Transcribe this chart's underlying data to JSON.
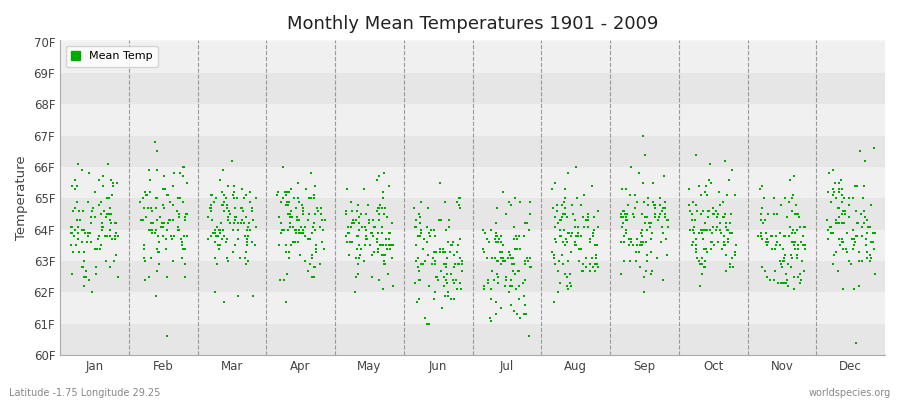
{
  "title": "Monthly Mean Temperatures 1901 - 2009",
  "ylabel": "Temperature",
  "ylim_low": 60,
  "ylim_high": 70,
  "ytick_labels": [
    "60F",
    "61F",
    "62F",
    "63F",
    "64F",
    "65F",
    "66F",
    "67F",
    "68F",
    "69F",
    "70F"
  ],
  "months": [
    "Jan",
    "Feb",
    "Mar",
    "Apr",
    "May",
    "Jun",
    "Jul",
    "Aug",
    "Sep",
    "Oct",
    "Nov",
    "Dec"
  ],
  "legend_label": "Mean Temp",
  "dot_color": "#00aa00",
  "bg_color": "#ffffff",
  "plot_bg": "#f5f5f5",
  "band_light": "#f0f0f0",
  "band_dark": "#e6e6e6",
  "footer_left": "Latitude -1.75 Longitude 29.25",
  "footer_right": "worldspecies.org",
  "monthly_means": [
    64.1,
    64.3,
    64.3,
    64.1,
    63.9,
    63.2,
    62.9,
    63.7,
    64.2,
    64.1,
    63.7,
    64.1
  ],
  "monthly_stds": [
    0.9,
    1.05,
    0.85,
    0.85,
    0.9,
    0.95,
    1.05,
    0.85,
    0.75,
    0.85,
    0.85,
    0.95
  ],
  "n_years": 109,
  "seed": 7
}
